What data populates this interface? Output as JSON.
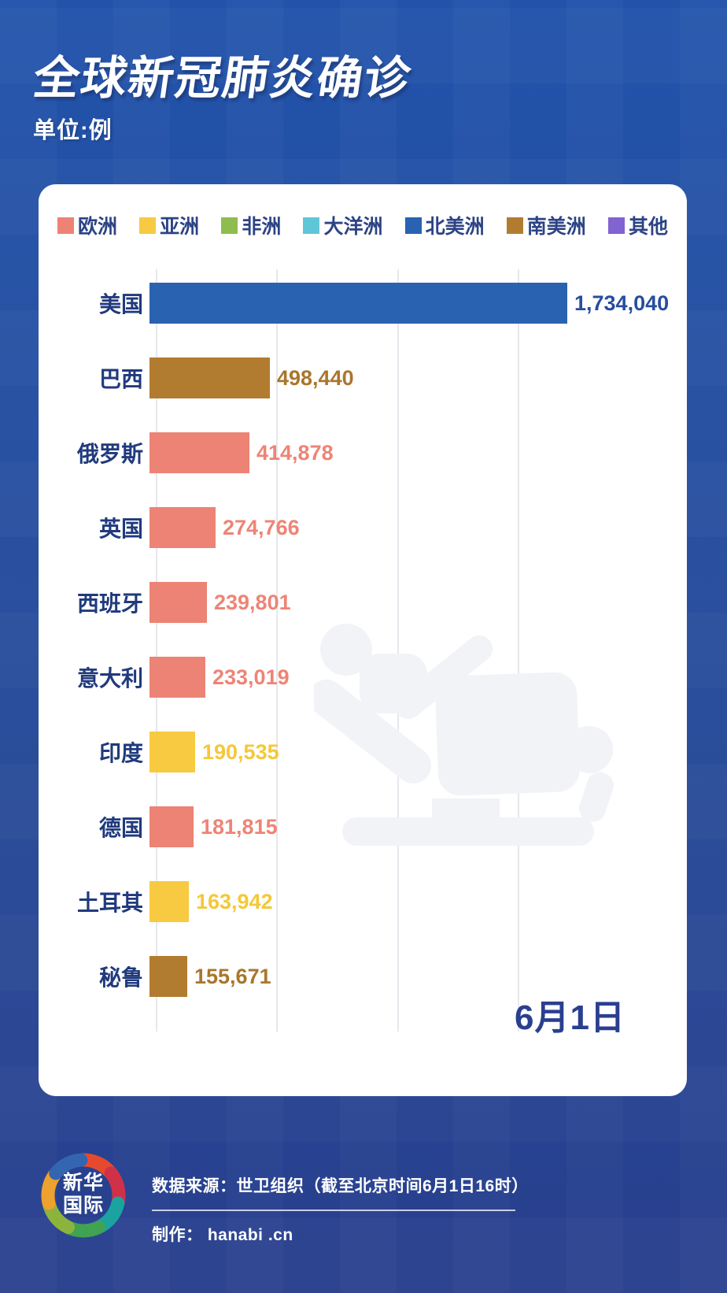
{
  "page": {
    "title": "全球新冠肺炎确诊",
    "unit_label": "单位:例"
  },
  "legend": {
    "items": [
      {
        "label": "欧洲",
        "color": "#ec8374"
      },
      {
        "label": "亚洲",
        "color": "#f7ca41"
      },
      {
        "label": "非洲",
        "color": "#8fbc4f"
      },
      {
        "label": "大洋洲",
        "color": "#5fc6d8"
      },
      {
        "label": "北美洲",
        "color": "#2a62b2"
      },
      {
        "label": "南美洲",
        "color": "#b27c30"
      },
      {
        "label": "其他",
        "color": "#8163d2"
      }
    ]
  },
  "chart_data": {
    "type": "bar",
    "orientation": "horizontal",
    "title": "全球新冠肺炎确诊",
    "unit": "例",
    "xlabel": "",
    "ylabel": "",
    "xlim": [
      0,
      2000000
    ],
    "gridline_interval": 500000,
    "grid": true,
    "legend_position": "top",
    "date_annotation": "6月1日",
    "categories": [
      "美国",
      "巴西",
      "俄罗斯",
      "英国",
      "西班牙",
      "意大利",
      "印度",
      "德国",
      "土耳其",
      "秘鲁"
    ],
    "values": [
      1734040,
      498440,
      414878,
      274766,
      239801,
      233019,
      190535,
      181815,
      163942,
      155671
    ],
    "bars": [
      {
        "country": "美国",
        "continent": "北美洲",
        "value": 1734040,
        "label": "1,734,040",
        "color": "#2a62b2",
        "value_color": "#274e9d"
      },
      {
        "country": "巴西",
        "continent": "南美洲",
        "value": 498440,
        "label": "498,440",
        "color": "#b27c30",
        "value_color": "#aa762c"
      },
      {
        "country": "俄罗斯",
        "continent": "欧洲",
        "value": 414878,
        "label": "414,878",
        "color": "#ec8374",
        "value_color": "#ee8475"
      },
      {
        "country": "英国",
        "continent": "欧洲",
        "value": 274766,
        "label": "274,766",
        "color": "#ec8374",
        "value_color": "#ee8475"
      },
      {
        "country": "西班牙",
        "continent": "欧洲",
        "value": 239801,
        "label": "239,801",
        "color": "#ec8374",
        "value_color": "#ee8475"
      },
      {
        "country": "意大利",
        "continent": "欧洲",
        "value": 233019,
        "label": "233,019",
        "color": "#ec8374",
        "value_color": "#ee8475"
      },
      {
        "country": "印度",
        "continent": "亚洲",
        "value": 190535,
        "label": "190,535",
        "color": "#f7ca41",
        "value_color": "#f4c838"
      },
      {
        "country": "德国",
        "continent": "欧洲",
        "value": 181815,
        "label": "181,815",
        "color": "#ec8374",
        "value_color": "#ee8475"
      },
      {
        "country": "土耳其",
        "continent": "亚洲",
        "value": 163942,
        "label": "163,942",
        "color": "#f7ca41",
        "value_color": "#f4c838"
      },
      {
        "country": "秘鲁",
        "continent": "南美洲",
        "value": 155671,
        "label": "155,671",
        "color": "#b27c30",
        "value_color": "#aa762c"
      }
    ]
  },
  "watermark": {
    "icon": "hospital-bed-patient-icon",
    "color": "#f2f3f7"
  },
  "footer": {
    "logo_line1": "新华",
    "logo_line2": "国际",
    "logo_colors": [
      "#e64a2e",
      "#cf3148",
      "#1ba3a0",
      "#41a351",
      "#8cb43c",
      "#eda12e",
      "#3465b0"
    ],
    "source": "数据来源：世卫组织（截至北京时间6月1日16时）",
    "credit": "制作： hanabi .cn"
  },
  "colors": {
    "background": "#2450a0",
    "card": "#ffffff",
    "country_label": "#203a7d",
    "legend_text": "#2c4384",
    "date_text": "#2a3f8f",
    "gridline": "#e6e8ed"
  }
}
